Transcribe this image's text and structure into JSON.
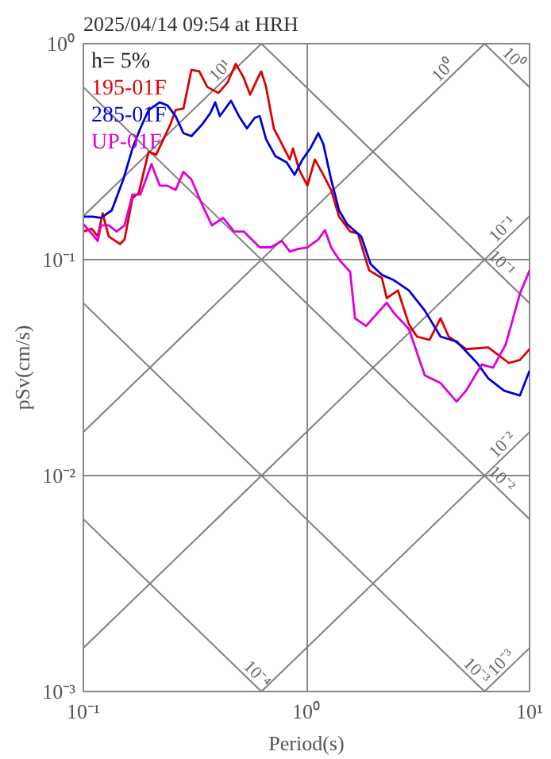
{
  "chart_data": {
    "type": "line",
    "title": "2025/04/14 09:54 at HRH",
    "xlabel": "Period(s)",
    "ylabel": "pSv(cm/s)",
    "log": "xy",
    "grid": true,
    "legend": "top left",
    "marker": "none",
    "line_style": "solid",
    "xlim": [
      0.1,
      10
    ],
    "ylim": [
      0.001,
      1
    ],
    "xticks": [
      {
        "value": 0.1,
        "label": "10⁻¹"
      },
      {
        "value": 1,
        "label": "10⁰"
      },
      {
        "value": 10,
        "label": "10¹"
      }
    ],
    "yticks": [
      {
        "value": 0.001,
        "label": "10⁻³"
      },
      {
        "value": 0.01,
        "label": "10⁻²"
      },
      {
        "value": 0.1,
        "label": "10⁻¹"
      },
      {
        "value": 1,
        "label": "10⁰"
      }
    ],
    "annotations": [
      "h= 5%",
      {
        "text": "10¹",
        "x": 0.44,
        "y": 0.7
      },
      {
        "text": "10⁰",
        "x": 4.4,
        "y": 0.7
      },
      {
        "text": "10⁻¹",
        "x": 8.1,
        "y": 0.129
      },
      {
        "text": "10⁻²",
        "x": 8.1,
        "y": 0.0129
      },
      {
        "text": "10⁻³",
        "x": 8.0,
        "y": 0.00127
      },
      {
        "text": "10⁰",
        "x": 7.9,
        "y": 0.795
      },
      {
        "text": "10⁻¹",
        "x": 7.0,
        "y": 0.0897
      },
      {
        "text": "10⁻²",
        "x": 7.0,
        "y": 0.00897
      },
      {
        "text": "10⁻³",
        "x": 5.4,
        "y": 0.00116
      },
      {
        "text": "10⁻⁴",
        "x": 0.56,
        "y": 0.00112
      }
    ],
    "series": [
      {
        "name": "195-01F",
        "color": "#dd0000",
        "x": [
          0.1,
          0.109,
          0.116,
          0.122,
          0.13,
          0.146,
          0.153,
          0.166,
          0.177,
          0.196,
          0.212,
          0.246,
          0.259,
          0.281,
          0.305,
          0.331,
          0.359,
          0.403,
          0.444,
          0.482,
          0.523,
          0.559,
          0.607,
          0.627,
          0.659,
          0.714,
          0.776,
          0.842,
          0.87,
          0.929,
          1.01,
          1.09,
          1.19,
          1.29,
          1.4,
          1.57,
          1.7,
          1.91,
          2.18,
          2.29,
          2.57,
          2.88,
          3.13,
          3.56,
          3.99,
          4.34,
          5.19,
          6.53,
          8.08,
          9.06,
          10
        ],
        "values": [
          0.135,
          0.139,
          0.128,
          0.164,
          0.128,
          0.118,
          0.124,
          0.193,
          0.203,
          0.316,
          0.306,
          0.425,
          0.493,
          0.501,
          0.756,
          0.744,
          0.631,
          0.591,
          0.663,
          0.807,
          0.697,
          0.581,
          0.697,
          0.744,
          0.631,
          0.405,
          0.343,
          0.291,
          0.327,
          0.26,
          0.22,
          0.291,
          0.247,
          0.21,
          0.158,
          0.135,
          0.132,
          0.0891,
          0.0821,
          0.0663,
          0.072,
          0.0501,
          0.044,
          0.0425,
          0.0535,
          0.044,
          0.0385,
          0.0392,
          0.0332,
          0.0343,
          0.0385
        ]
      },
      {
        "name": "285-01F",
        "color": "#0000dd",
        "x": [
          0.1,
          0.11,
          0.12,
          0.134,
          0.151,
          0.166,
          0.18,
          0.196,
          0.22,
          0.238,
          0.259,
          0.281,
          0.305,
          0.342,
          0.371,
          0.39,
          0.409,
          0.459,
          0.498,
          0.541,
          0.587,
          0.617,
          0.659,
          0.726,
          0.815,
          0.885,
          0.96,
          1.04,
          1.13,
          1.19,
          1.29,
          1.4,
          1.52,
          1.76,
          1.94,
          2.18,
          2.44,
          2.88,
          3.39,
          3.99,
          4.71,
          5.82,
          6.53,
          7.69,
          9.06,
          10
        ],
        "values": [
          0.158,
          0.158,
          0.156,
          0.169,
          0.235,
          0.327,
          0.405,
          0.493,
          0.535,
          0.518,
          0.462,
          0.385,
          0.373,
          0.425,
          0.477,
          0.535,
          0.462,
          0.544,
          0.462,
          0.405,
          0.454,
          0.462,
          0.361,
          0.301,
          0.282,
          0.247,
          0.291,
          0.327,
          0.385,
          0.343,
          0.235,
          0.169,
          0.146,
          0.128,
          0.0952,
          0.0849,
          0.0808,
          0.072,
          0.0581,
          0.044,
          0.0418,
          0.0332,
          0.0282,
          0.0247,
          0.0235,
          0.0306
        ]
      },
      {
        "name": "UP-01F",
        "color": "#dd00dd",
        "x": [
          0.1,
          0.109,
          0.116,
          0.12,
          0.13,
          0.141,
          0.153,
          0.166,
          0.18,
          0.202,
          0.22,
          0.238,
          0.259,
          0.281,
          0.305,
          0.342,
          0.377,
          0.423,
          0.474,
          0.523,
          0.568,
          0.617,
          0.692,
          0.776,
          0.842,
          0.914,
          1.01,
          1.13,
          1.21,
          1.29,
          1.4,
          1.57,
          1.65,
          1.85,
          2.07,
          2.29,
          2.48,
          2.88,
          3.39,
          3.99,
          4.71,
          5.19,
          6.11,
          6.86,
          7.82,
          9.06,
          10
        ],
        "values": [
          0.146,
          0.132,
          0.122,
          0.144,
          0.144,
          0.135,
          0.144,
          0.2,
          0.2,
          0.277,
          0.22,
          0.22,
          0.21,
          0.255,
          0.235,
          0.178,
          0.144,
          0.156,
          0.135,
          0.135,
          0.124,
          0.114,
          0.114,
          0.122,
          0.109,
          0.112,
          0.114,
          0.124,
          0.137,
          0.114,
          0.1,
          0.0877,
          0.0535,
          0.0493,
          0.0562,
          0.0631,
          0.0562,
          0.0477,
          0.0291,
          0.0268,
          0.022,
          0.0247,
          0.0327,
          0.0316,
          0.0405,
          0.0697,
          0.0891
        ]
      },
      {
        "color": "#808080",
        "x": [
          0.1,
          0.628
        ],
        "values": [
          0.159,
          1
        ]
      },
      {
        "color": "#808080",
        "x": [
          0.1,
          6.28
        ],
        "values": [
          0.0159,
          1
        ]
      },
      {
        "color": "#808080",
        "x": [
          0.1,
          10
        ],
        "values": [
          0.00159,
          0.159
        ]
      },
      {
        "color": "#808080",
        "x": [
          0.628,
          10
        ],
        "values": [
          0.001,
          0.0159
        ]
      },
      {
        "color": "#808080",
        "x": [
          6.28,
          10
        ],
        "values": [
          0.001,
          0.00159
        ]
      },
      {
        "color": "#808080",
        "x": [
          6.28,
          10
        ],
        "values": [
          1,
          0.628
        ]
      },
      {
        "color": "#808080",
        "x": [
          0.628,
          10
        ],
        "values": [
          1,
          0.0628
        ]
      },
      {
        "color": "#808080",
        "x": [
          0.1,
          10
        ],
        "values": [
          0.628,
          0.00628
        ]
      },
      {
        "color": "#808080",
        "x": [
          0.1,
          6.28
        ],
        "values": [
          0.0628,
          0.001
        ]
      },
      {
        "color": "#808080",
        "x": [
          0.1,
          0.628
        ],
        "values": [
          0.00628,
          0.001
        ]
      }
    ]
  }
}
